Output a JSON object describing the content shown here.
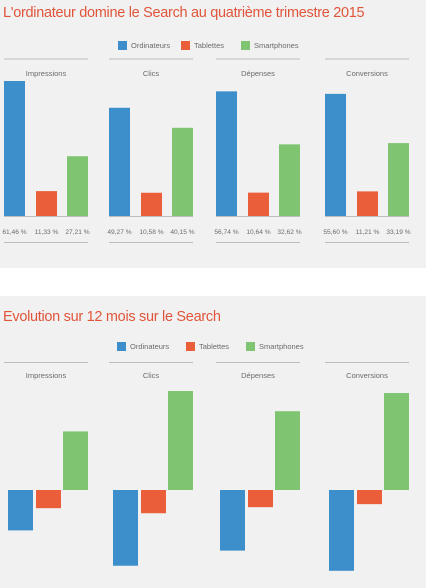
{
  "colors": {
    "ordinateurs": "#3d8fcb",
    "tablettes": "#ea5e3a",
    "smartphones": "#7fc470",
    "title": "#e0553a",
    "text": "#6b6b6b",
    "rule": "#bdbdbd"
  },
  "chart_data": [
    {
      "type": "bar",
      "title": "L'ordinateur domine le Search au quatrième trimestre 2015",
      "legend_position": "top-center",
      "legend": [
        "Ordinateurs",
        "Tablettes",
        "Smartphones"
      ],
      "ylim": [
        0,
        70
      ],
      "groups": [
        {
          "label": "Impressions",
          "series": [
            {
              "name": "Ordinateurs",
              "value": 61.46,
              "label": "61,46 %"
            },
            {
              "name": "Tablettes",
              "value": 11.33,
              "label": "11,33 %"
            },
            {
              "name": "Smartphones",
              "value": 27.21,
              "label": "27,21 %"
            }
          ]
        },
        {
          "label": "Clics",
          "series": [
            {
              "name": "Ordinateurs",
              "value": 49.27,
              "label": "49,27 %"
            },
            {
              "name": "Tablettes",
              "value": 10.58,
              "label": "10,58 %"
            },
            {
              "name": "Smartphones",
              "value": 40.15,
              "label": "40,15 %"
            }
          ]
        },
        {
          "label": "Dépenses",
          "series": [
            {
              "name": "Ordinateurs",
              "value": 56.74,
              "label": "56,74 %"
            },
            {
              "name": "Tablettes",
              "value": 10.64,
              "label": "10,64 %"
            },
            {
              "name": "Smartphones",
              "value": 32.62,
              "label": "32,62 %"
            }
          ]
        },
        {
          "label": "Conversions",
          "series": [
            {
              "name": "Ordinateurs",
              "value": 55.6,
              "label": "55,60 %"
            },
            {
              "name": "Tablettes",
              "value": 11.21,
              "label": "11,21 %"
            },
            {
              "name": "Smartphones",
              "value": 33.19,
              "label": "33,19 %"
            }
          ]
        }
      ]
    },
    {
      "type": "bar",
      "title": "Evolution sur 12 mois sur le Search",
      "legend_position": "top-center",
      "legend": [
        "Ordinateurs",
        "Tablettes",
        "Smartphones"
      ],
      "ylim": [
        -8,
        10
      ],
      "groups": [
        {
          "label": "Impressions",
          "series": [
            {
              "name": "Ordinateurs",
              "value": -4.0
            },
            {
              "name": "Tablettes",
              "value": -1.8
            },
            {
              "name": "Smartphones",
              "value": 5.8
            }
          ]
        },
        {
          "label": "Clics",
          "series": [
            {
              "name": "Ordinateurs",
              "value": -7.5
            },
            {
              "name": "Tablettes",
              "value": -2.3
            },
            {
              "name": "Smartphones",
              "value": 9.8
            }
          ]
        },
        {
          "label": "Dépenses",
          "series": [
            {
              "name": "Ordinateurs",
              "value": -6.0
            },
            {
              "name": "Tablettes",
              "value": -1.7
            },
            {
              "name": "Smartphones",
              "value": 7.8
            }
          ]
        },
        {
          "label": "Conversions",
          "series": [
            {
              "name": "Ordinateurs",
              "value": -8.0
            },
            {
              "name": "Tablettes",
              "value": -1.4
            },
            {
              "name": "Smartphones",
              "value": 9.6
            }
          ]
        }
      ]
    }
  ]
}
